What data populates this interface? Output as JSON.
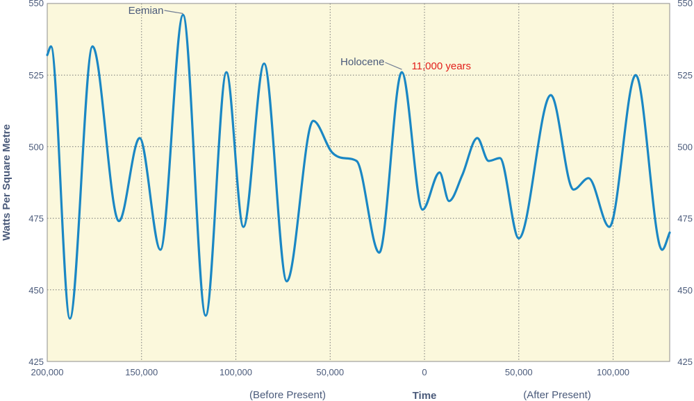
{
  "chart_data": {
    "type": "line",
    "title": "",
    "xlabel": "Time",
    "ylabel": "Watts Per Square Metre",
    "x_sublabels": {
      "left": "(Before Present)",
      "right": "(After Present)"
    },
    "xlim": [
      -200000,
      130000
    ],
    "ylim": [
      425,
      550
    ],
    "grid": true,
    "x_ticks": [
      {
        "value": -200000,
        "label": "200,000"
      },
      {
        "value": -150000,
        "label": "150,000"
      },
      {
        "value": -100000,
        "label": "100,000"
      },
      {
        "value": -50000,
        "label": "50,000"
      },
      {
        "value": 0,
        "label": "0"
      },
      {
        "value": 50000,
        "label": "50,000"
      },
      {
        "value": 100000,
        "label": "100,000"
      }
    ],
    "y_ticks": [
      425,
      450,
      475,
      500,
      525,
      550
    ],
    "series": [
      {
        "color": "#1a87c4",
        "x": [
          -200000,
          -198000,
          -188000,
          -176000,
          -162000,
          -151000,
          -140000,
          -128000,
          -116000,
          -105000,
          -96000,
          -85000,
          -73000,
          -59000,
          -49000,
          -43000,
          -36000,
          -24000,
          -12000,
          -1000,
          8000,
          13000,
          20000,
          28000,
          34000,
          40000,
          50000,
          67000,
          79000,
          87000,
          98000,
          112000,
          126000,
          130000
        ],
        "y": [
          532,
          535,
          440,
          535,
          474,
          503,
          464,
          546,
          441,
          526,
          472,
          529,
          453,
          509,
          498,
          496,
          495,
          463,
          526,
          478,
          491,
          481,
          490,
          503,
          495,
          496,
          468,
          518,
          485,
          489,
          472,
          525,
          464,
          470
        ]
      }
    ],
    "annotations": [
      {
        "text": "Eemian",
        "x": -128000,
        "y": 546,
        "color": "#4a5a7a"
      },
      {
        "text": "Holocene",
        "x": -12000,
        "y": 526,
        "color": "#4a5a7a"
      },
      {
        "text": "11,000 years",
        "x": -12000,
        "y": 526,
        "color": "#e2201c"
      }
    ],
    "colors": {
      "plot_background": "#fbf8dc",
      "line": "#1a87c4",
      "text": "#4a5a7a",
      "highlight": "#e2201c"
    }
  }
}
